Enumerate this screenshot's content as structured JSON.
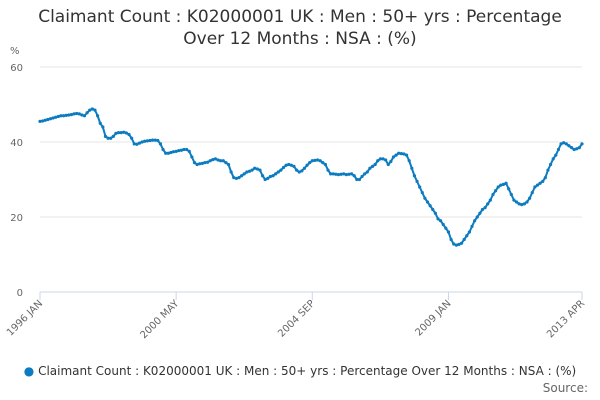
{
  "chart_data": {
    "type": "line",
    "title": "Claimant Count : K02000001 UK : Men : 50+ yrs : Percentage Over 12 Months : NSA : (%)",
    "y_unit": "%",
    "source": "Source:",
    "ylim": [
      0,
      60
    ],
    "yticks": [
      0,
      20,
      40,
      60
    ],
    "grid": true,
    "categories": [
      "1996 JAN",
      null,
      null,
      null,
      null,
      null,
      null,
      null,
      null,
      null,
      null,
      null,
      null,
      null,
      null,
      null,
      null,
      null,
      null,
      null,
      null,
      null,
      null,
      null,
      null,
      null,
      null,
      null,
      null,
      null,
      null,
      null,
      null,
      null,
      null,
      null,
      null,
      null,
      null,
      null,
      null,
      null,
      null,
      null,
      null,
      null,
      null,
      null,
      null,
      null,
      null,
      null,
      "2000 MAY",
      null,
      null,
      null,
      null,
      null,
      null,
      null,
      null,
      null,
      null,
      null,
      null,
      null,
      null,
      null,
      null,
      null,
      null,
      null,
      null,
      null,
      null,
      null,
      null,
      null,
      null,
      null,
      null,
      null,
      null,
      null,
      null,
      null,
      null,
      null,
      null,
      null,
      null,
      null,
      null,
      null,
      null,
      null,
      null,
      null,
      null,
      null,
      null,
      null,
      null,
      null,
      "2004 SEP",
      null,
      null,
      null,
      null,
      null,
      null,
      null,
      null,
      null,
      null,
      null,
      null,
      null,
      null,
      null,
      null,
      null,
      null,
      null,
      null,
      null,
      null,
      null,
      null,
      null,
      null,
      null,
      null,
      null,
      null,
      null,
      null,
      null,
      null,
      null,
      null,
      null,
      null,
      null,
      null,
      null,
      null,
      null,
      null,
      null,
      null,
      null,
      null,
      null,
      null,
      null,
      "2009 JAN",
      null,
      null,
      null,
      null,
      null,
      null,
      null,
      null,
      null,
      null,
      null,
      null,
      null,
      null,
      null,
      null,
      null,
      null,
      null,
      null,
      null,
      null,
      null,
      null,
      null,
      null,
      null,
      null,
      null,
      null,
      null,
      null,
      null,
      null,
      null,
      null,
      null,
      null,
      null,
      null,
      null,
      null,
      null,
      null,
      null,
      null,
      null,
      null,
      null,
      null,
      "2013 APR"
    ],
    "series": [
      {
        "name": "Claimant Count : K02000001 UK : Men : 50+ yrs : Percentage Over 12 Months : NSA : (%)",
        "color": "#0c7bc0",
        "values": [
          45.5,
          45.6,
          45.8,
          46,
          46.2,
          46.4,
          46.6,
          46.8,
          47,
          47,
          47.1,
          47.2,
          47.3,
          47.5,
          47.6,
          47.5,
          47.2,
          47,
          47.8,
          48.5,
          48.8,
          48.5,
          47,
          45,
          44,
          41.5,
          41,
          41,
          41.5,
          42.3,
          42.5,
          42.5,
          42.6,
          42.4,
          42,
          41,
          39.5,
          39.4,
          39.7,
          40,
          40.2,
          40.3,
          40.4,
          40.5,
          40.5,
          40.4,
          39.5,
          38,
          37,
          37,
          37.2,
          37.4,
          37.5,
          37.7,
          37.8,
          38,
          38,
          37.5,
          36,
          34.5,
          34,
          34.2,
          34.3,
          34.5,
          34.6,
          35,
          35.3,
          35.5,
          35.2,
          35,
          35,
          34.5,
          34,
          32,
          30.5,
          30.3,
          30.5,
          31,
          31.5,
          32,
          32.2,
          32.5,
          33,
          32.8,
          32.5,
          31,
          30,
          30.3,
          30.8,
          31,
          31.5,
          32,
          32.5,
          33.2,
          33.8,
          34,
          33.8,
          33.5,
          32.5,
          32,
          32.3,
          33,
          33.8,
          34.5,
          35,
          35.1,
          35.2,
          35,
          34.5,
          34,
          32.5,
          31.5,
          31.5,
          31.4,
          31.3,
          31.4,
          31.5,
          31.3,
          31.4,
          31.5,
          31,
          30,
          30,
          30.8,
          31.5,
          32,
          33,
          33.5,
          34,
          35,
          35.5,
          35.5,
          35.2,
          34,
          34.8,
          36,
          36.5,
          37,
          36.9,
          36.8,
          36.5,
          35,
          33,
          31,
          29.5,
          28,
          26.5,
          25,
          24,
          23,
          22,
          21,
          19.5,
          19,
          18,
          17,
          16,
          14,
          12.8,
          12.5,
          12.7,
          13,
          14,
          15,
          16,
          17.5,
          19,
          20,
          21,
          22,
          22.5,
          23.5,
          24.5,
          26,
          27,
          28,
          28.5,
          28.7,
          29,
          27.5,
          26,
          24.5,
          24,
          23.5,
          23.3,
          23.5,
          24,
          25,
          26.5,
          28,
          28.5,
          29,
          29.5,
          30.5,
          32.5,
          34,
          35.5,
          36.5,
          38,
          39.5,
          39.8,
          39.5,
          39,
          38.5,
          38,
          38.2,
          38.5,
          39.5
        ]
      }
    ]
  }
}
